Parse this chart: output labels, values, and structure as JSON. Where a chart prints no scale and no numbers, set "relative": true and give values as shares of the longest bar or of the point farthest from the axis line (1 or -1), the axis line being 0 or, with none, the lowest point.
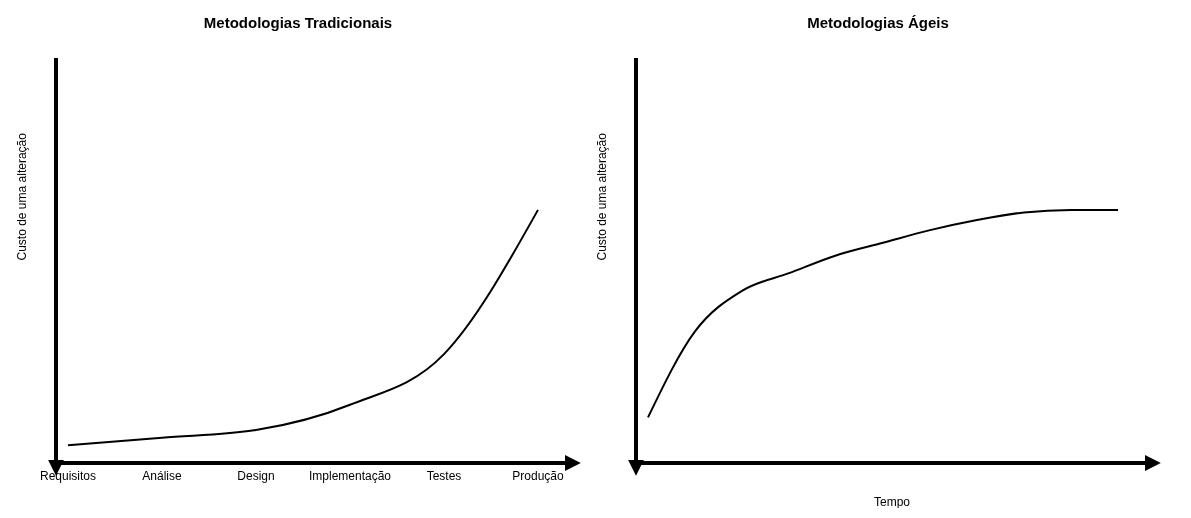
{
  "chart_data": [
    {
      "type": "line",
      "title": "Metodologias Tradicionais",
      "ylabel": "Custo de uma alteração",
      "categories": [
        "Requisitos",
        "Análise",
        "Design",
        "Implementação",
        "Testes",
        "Produção"
      ],
      "relative": true,
      "series": [
        {
          "color": "#000000",
          "values": [
            0.07,
            0.1,
            0.13,
            0.23,
            0.43,
            1
          ]
        }
      ],
      "marker": "none",
      "line_style": "solid",
      "grid": false,
      "legend": false
    },
    {
      "type": "line",
      "title": "Metodologias Ágeis",
      "ylabel": "Custo de uma alteração",
      "xlabel": "Tempo",
      "categories": [
        null,
        null,
        null,
        null,
        null,
        null,
        null,
        null,
        null,
        null,
        null
      ],
      "relative": true,
      "series": [
        {
          "color": "#000000",
          "values": [
            0.18,
            0.52,
            0.68,
            0.75,
            0.82,
            0.87,
            0.92,
            0.96,
            0.99,
            1,
            1
          ]
        }
      ],
      "marker": "none",
      "line_style": "solid",
      "grid": false,
      "legend": false
    }
  ]
}
